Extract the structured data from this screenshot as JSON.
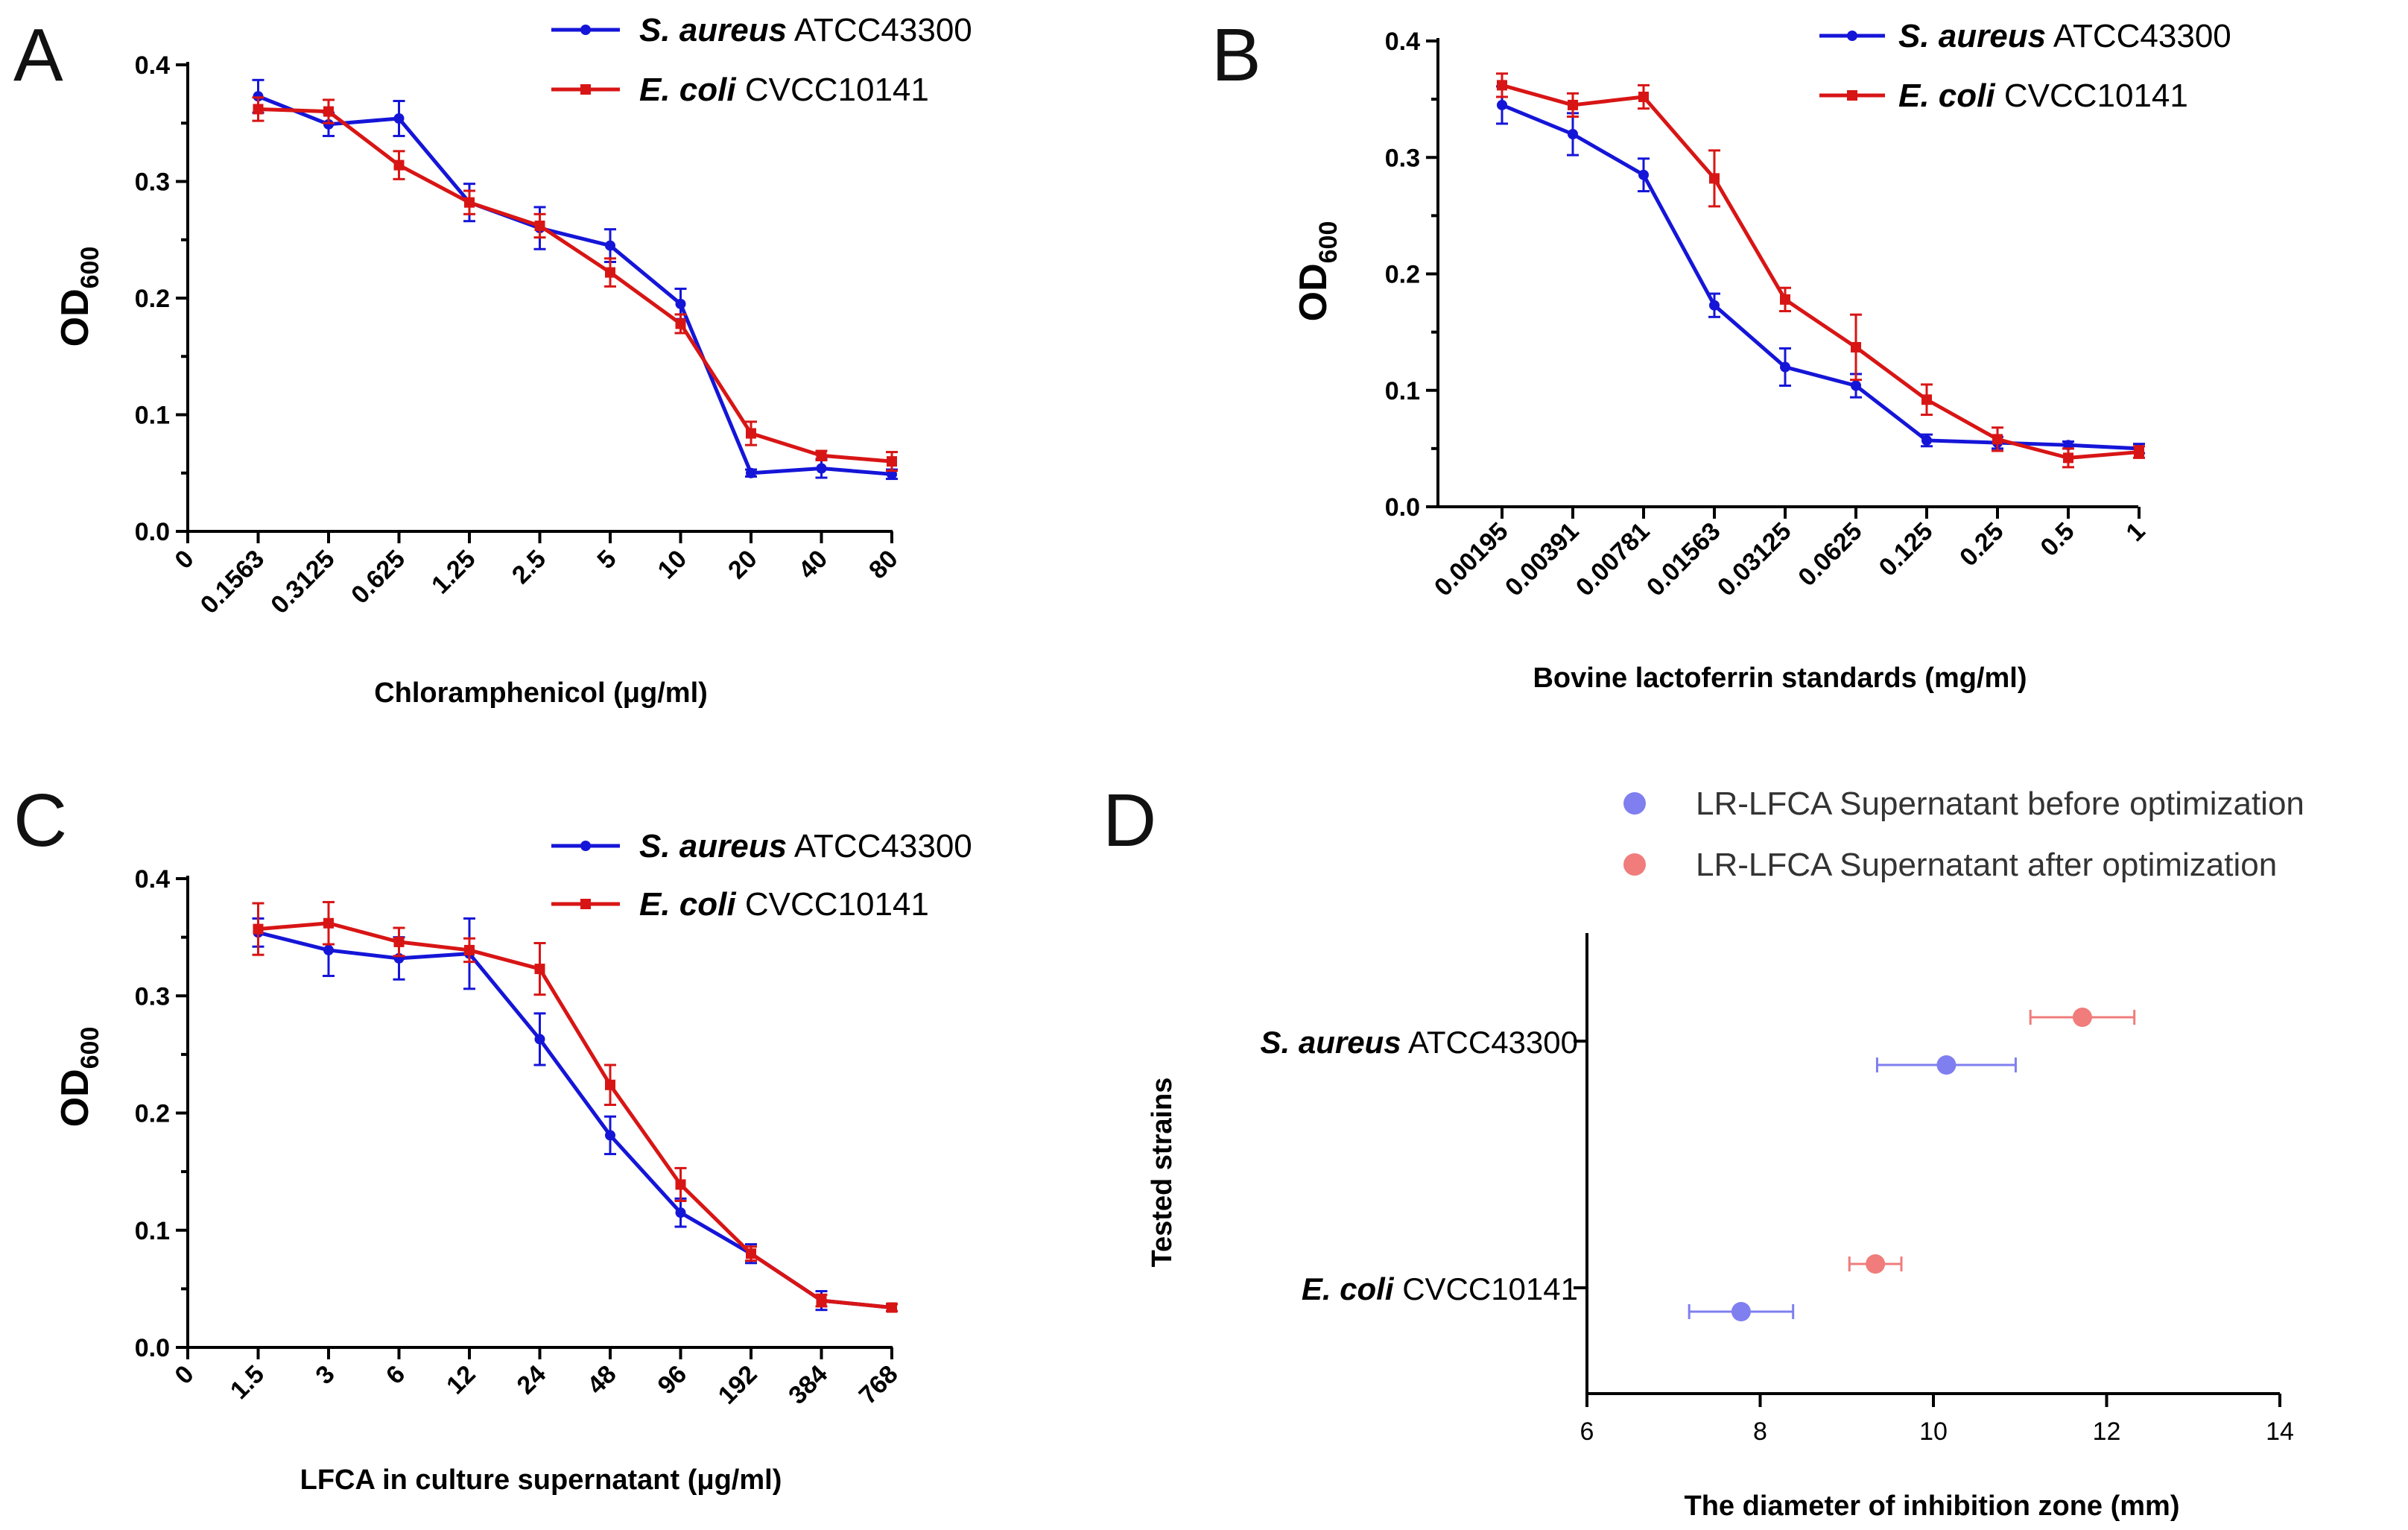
{
  "panels": [
    {
      "letter": "A",
      "ylabel_main": "OD",
      "ylabel_sub": "600",
      "xlabel": "Chloramphenicol (μg/ml)",
      "chart_data": {
        "type": "line",
        "categories": [
          "0",
          "0.1563",
          "0.3125",
          "0.625",
          "1.25",
          "2.5",
          "5",
          "10",
          "20",
          "40",
          "80"
        ],
        "ylim": [
          0,
          0.4
        ],
        "yticks": [
          "0.0",
          "0.1",
          "0.2",
          "0.3",
          "0.4"
        ],
        "series": [
          {
            "genus": "S. aureus",
            "strain": "ATCC43300",
            "color": "#1515d8",
            "marker": "circle",
            "values": [
              null,
              0.373,
              0.349,
              0.354,
              0.282,
              0.26,
              0.245,
              0.195,
              0.05,
              0.054,
              0.049
            ],
            "errors": [
              null,
              0.014,
              0.01,
              0.015,
              0.016,
              0.018,
              0.014,
              0.013,
              0.003,
              0.008,
              0.004
            ]
          },
          {
            "genus": "E. coli",
            "strain": "CVCC10141",
            "color": "#d81515",
            "marker": "square",
            "values": [
              null,
              0.362,
              0.36,
              0.314,
              0.282,
              0.262,
              0.222,
              0.178,
              0.084,
              0.065,
              0.06
            ],
            "errors": [
              null,
              0.01,
              0.01,
              0.012,
              0.01,
              0.01,
              0.012,
              0.008,
              0.01,
              0.004,
              0.008
            ]
          }
        ]
      }
    },
    {
      "letter": "B",
      "ylabel_main": "OD",
      "ylabel_sub": "600",
      "xlabel": "Bovine lactoferrin standards (mg/ml)",
      "chart_data": {
        "type": "line",
        "categories": [
          "0.00195",
          "0.00391",
          "0.00781",
          "0.01563",
          "0.03125",
          "0.0625",
          "0.125",
          "0.25",
          "0.5",
          "1"
        ],
        "ylim": [
          0,
          0.4
        ],
        "yticks": [
          "0.0",
          "0.1",
          "0.2",
          "0.3",
          "0.4"
        ],
        "series": [
          {
            "genus": "S. aureus",
            "strain": "ATCC43300",
            "color": "#1515d8",
            "marker": "circle",
            "values": [
              0.345,
              0.32,
              0.285,
              0.173,
              0.12,
              0.104,
              0.057,
              0.055,
              0.053,
              0.05
            ],
            "errors": [
              0.016,
              0.018,
              0.014,
              0.01,
              0.016,
              0.01,
              0.005,
              0.005,
              0.003,
              0.004
            ]
          },
          {
            "genus": "E. coli",
            "strain": "CVCC10141",
            "color": "#d81515",
            "marker": "square",
            "values": [
              0.362,
              0.345,
              0.352,
              0.282,
              0.178,
              0.137,
              0.092,
              0.058,
              0.042,
              0.047
            ],
            "errors": [
              0.01,
              0.01,
              0.01,
              0.024,
              0.01,
              0.028,
              0.013,
              0.01,
              0.008,
              0.005
            ]
          }
        ]
      }
    },
    {
      "letter": "C",
      "ylabel_main": "OD",
      "ylabel_sub": "600",
      "xlabel": "LFCA in culture supernatant (μg/ml)",
      "chart_data": {
        "type": "line",
        "categories": [
          "0",
          "1.5",
          "3",
          "6",
          "12",
          "24",
          "48",
          "96",
          "192",
          "384",
          "768"
        ],
        "ylim": [
          0,
          0.4
        ],
        "yticks": [
          "0.0",
          "0.1",
          "0.2",
          "0.3",
          "0.4"
        ],
        "series": [
          {
            "genus": "S. aureus",
            "strain": "ATCC43300",
            "color": "#1515d8",
            "marker": "circle",
            "values": [
              null,
              0.354,
              0.339,
              0.332,
              0.336,
              0.263,
              0.181,
              0.115,
              0.08,
              0.04,
              0.034
            ],
            "errors": [
              null,
              0.012,
              0.022,
              0.018,
              0.03,
              0.022,
              0.016,
              0.012,
              0.008,
              0.008,
              0.003
            ]
          },
          {
            "genus": "E. coli",
            "strain": "CVCC10141",
            "color": "#d81515",
            "marker": "square",
            "values": [
              null,
              0.357,
              0.362,
              0.346,
              0.339,
              0.323,
              0.224,
              0.139,
              0.08,
              0.04,
              0.034
            ],
            "errors": [
              null,
              0.022,
              0.018,
              0.012,
              0.01,
              0.022,
              0.017,
              0.014,
              0.006,
              0.005,
              0.003
            ]
          }
        ]
      }
    }
  ],
  "panel_d": {
    "letter": "D",
    "ylabel": "Tested strains",
    "xlabel": "The diameter of inhibition zone (mm)",
    "legend": [
      {
        "label": "LR-LFCA Supernatant before optimization",
        "color": "#7f7ff0"
      },
      {
        "label": "LR-LFCA Supernatant after optimization",
        "color": "#f07c7c"
      }
    ],
    "chart_data": {
      "type": "scatter",
      "xlim": [
        6,
        14
      ],
      "xticks": [
        "6",
        "8",
        "10",
        "12",
        "14"
      ],
      "categories": [
        {
          "genus": "S. aureus",
          "strain": "ATCC43300"
        },
        {
          "genus": "E. coli",
          "strain": "CVCC10141"
        }
      ],
      "series": [
        {
          "name": "LR-LFCA Supernatant before optimization",
          "color": "#7f7ff0",
          "values": [
            10.15,
            7.78
          ],
          "errors": [
            0.8,
            0.6
          ]
        },
        {
          "name": "LR-LFCA Supernatant after optimization",
          "color": "#f07c7c",
          "values": [
            11.72,
            9.33
          ],
          "errors": [
            0.6,
            0.3
          ]
        }
      ]
    }
  }
}
